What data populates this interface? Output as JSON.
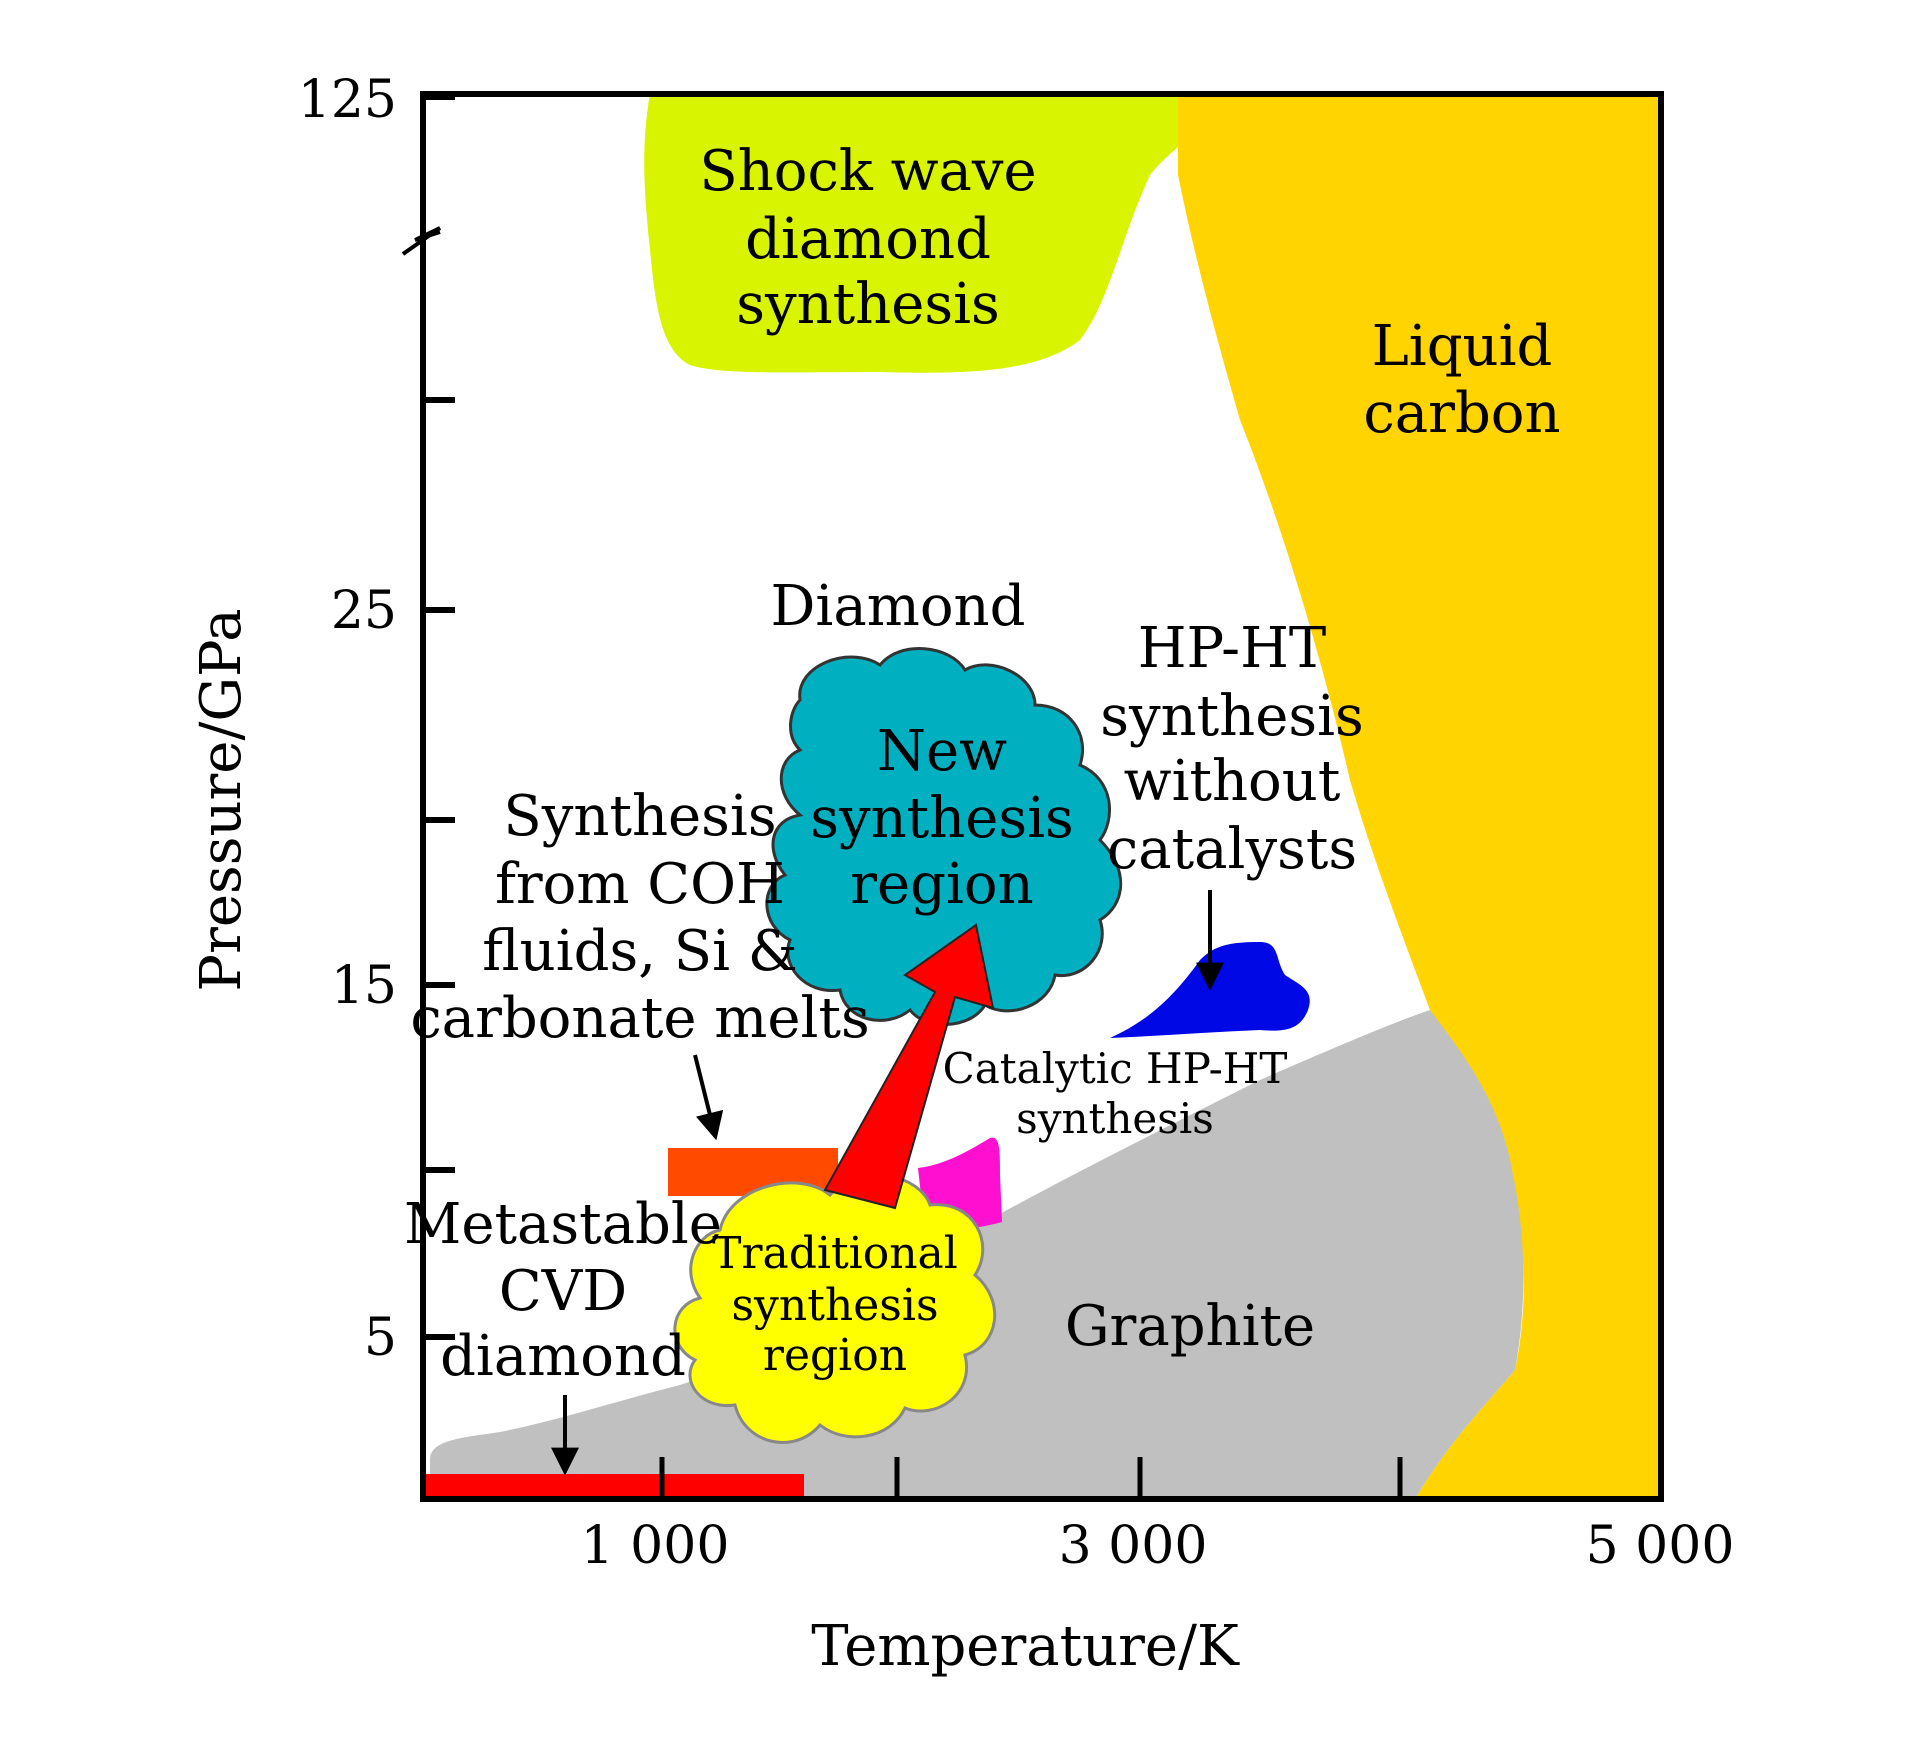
{
  "axes": {
    "x_label": "Temperature/K",
    "y_label": "Pressure/GPa",
    "x_ticks": [
      "1 000",
      "3 000",
      "5 000"
    ],
    "y_ticks": [
      "125",
      "25",
      "15",
      "5"
    ]
  },
  "regions": {
    "shock_wave": [
      "Shock wave",
      "diamond",
      "synthesis"
    ],
    "liquid_carbon": [
      "Liquid",
      "carbon"
    ],
    "diamond": "Diamond",
    "graphite": "Graphite",
    "hpht_no_catalyst": [
      "HP-HT",
      "synthesis",
      "without",
      "catalysts"
    ],
    "coh_fluids": [
      "Synthesis",
      "from COH",
      "fluids, Si &",
      "carbonate melts"
    ],
    "catalytic_hpht": [
      "Catalytic HP-HT",
      "synthesis"
    ],
    "cvd": [
      "Metastable",
      "CVD",
      "diamond"
    ],
    "new_region": [
      "New",
      "synthesis",
      "region"
    ],
    "traditional_region": [
      "Traditional",
      "synthesis",
      "region"
    ]
  },
  "colors": {
    "shock_wave": "#d8f400",
    "liquid_carbon": "#ffd400",
    "graphite": "#c0c0c0",
    "hpht_no_catalyst": "#0008e6",
    "coh_fluids": "#ff4a00",
    "catalytic_hpht": "#ff10d0",
    "cvd": "#ff0000",
    "new_region": "#00b0c0",
    "traditional_region": "#ffff00",
    "arrow": "#ff0000"
  }
}
